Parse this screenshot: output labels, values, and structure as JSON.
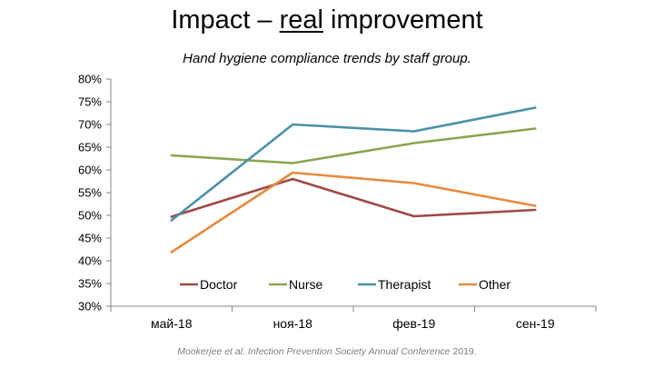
{
  "slide": {
    "title_before": "Impact – ",
    "title_underlined": "real",
    "title_after": " improvement",
    "citation_authors": "Mookerjee et al.",
    "citation_source": "Infection Prevention Society Annual Conference",
    "citation_year": "2019."
  },
  "chart_data": {
    "type": "line",
    "title": "Hand hygiene compliance trends by staff group.",
    "xlabel": "",
    "ylabel": "",
    "categories": [
      "май-18",
      "ноя-18",
      "фев-19",
      "сен-19"
    ],
    "ylim": [
      0.3,
      0.8
    ],
    "yticks": [
      0.3,
      0.35,
      0.4,
      0.45,
      0.5,
      0.55,
      0.6,
      0.65,
      0.7,
      0.75,
      0.8
    ],
    "ytick_labels": [
      "30%",
      "35%",
      "40%",
      "45%",
      "50%",
      "55%",
      "60%",
      "65%",
      "70%",
      "75%",
      "80%"
    ],
    "grid": false,
    "legend_position": "bottom-inside",
    "series": [
      {
        "name": "Doctor",
        "color": "#9e4a48",
        "values": [
          0.497,
          0.58,
          0.498,
          0.512
        ]
      },
      {
        "name": "Nurse",
        "color": "#8ba44f",
        "values": [
          0.632,
          0.615,
          0.659,
          0.691
        ]
      },
      {
        "name": "Therapist",
        "color": "#4a90a8",
        "values": [
          0.489,
          0.7,
          0.685,
          0.737
        ]
      },
      {
        "name": "Other",
        "color": "#e58a3e",
        "values": [
          0.419,
          0.594,
          0.571,
          0.521
        ]
      }
    ]
  }
}
